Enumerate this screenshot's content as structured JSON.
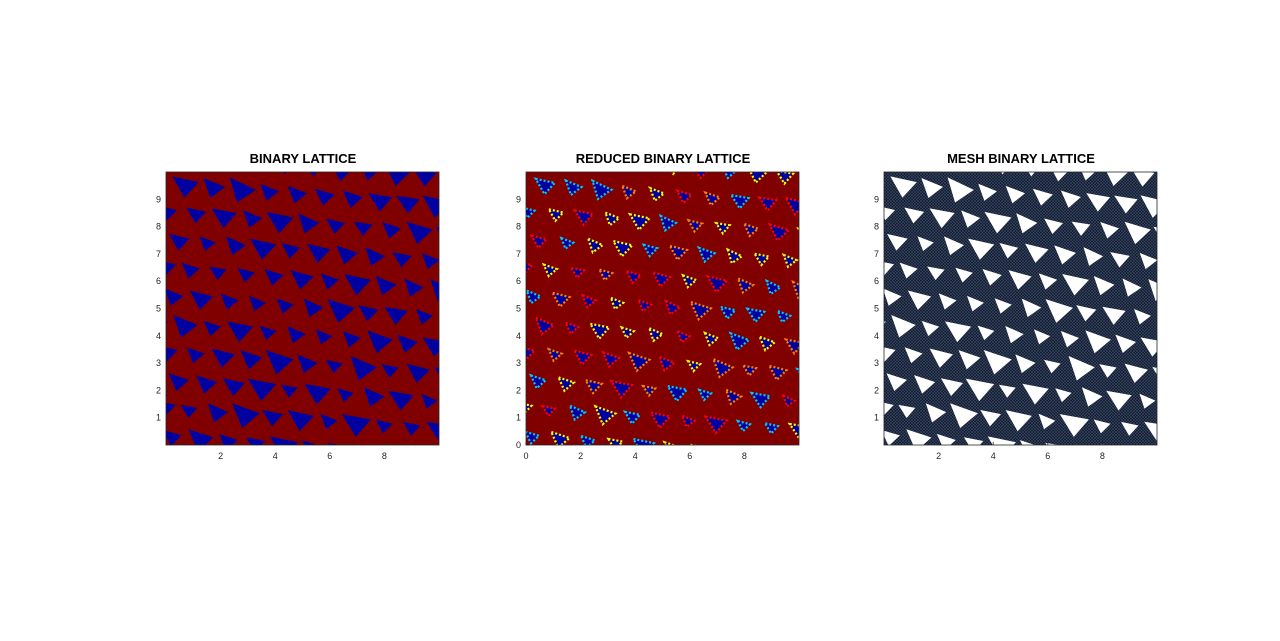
{
  "chart_data": [
    {
      "type": "heatmap",
      "title": "BINARY LATTICE",
      "xlim": [
        0,
        10
      ],
      "ylim": [
        0,
        10
      ],
      "xticks": [
        2,
        4,
        6,
        8
      ],
      "yticks": [
        1,
        2,
        3,
        4,
        5,
        6,
        7,
        8,
        9
      ],
      "colormap": "jet",
      "colors": {
        "background": "#800000",
        "holes": "#0000a0"
      },
      "holes": "triangular, arranged in diagonal rows",
      "grid": false
    },
    {
      "type": "heatmap",
      "title": "REDUCED BINARY LATTICE",
      "xlim": [
        0,
        10
      ],
      "ylim": [
        0,
        10
      ],
      "xticks": [
        0,
        2,
        4,
        6,
        8
      ],
      "yticks": [
        0,
        1,
        2,
        3,
        4,
        5,
        6,
        7,
        8,
        9
      ],
      "colormap": "jet",
      "colors": {
        "background": "#800000",
        "holes": "#0000a0",
        "edges": [
          "#00c8ff",
          "#ffff00",
          "#ff8000",
          "#ff0000"
        ]
      },
      "holes": "triangular with multi-colored pixelated edges",
      "grid": false
    },
    {
      "type": "heatmap",
      "title": "MESH BINARY LATTICE",
      "xlim": [
        0,
        10
      ],
      "ylim": [
        0,
        10
      ],
      "xticks": [
        2,
        4,
        6,
        8
      ],
      "yticks": [
        1,
        2,
        3,
        4,
        5,
        6,
        7,
        8,
        9
      ],
      "colormap": "mesh",
      "colors": {
        "background": "#101828",
        "holes": "#ffffff"
      },
      "holes": "triangular, arranged in diagonal rows",
      "grid": false
    }
  ]
}
